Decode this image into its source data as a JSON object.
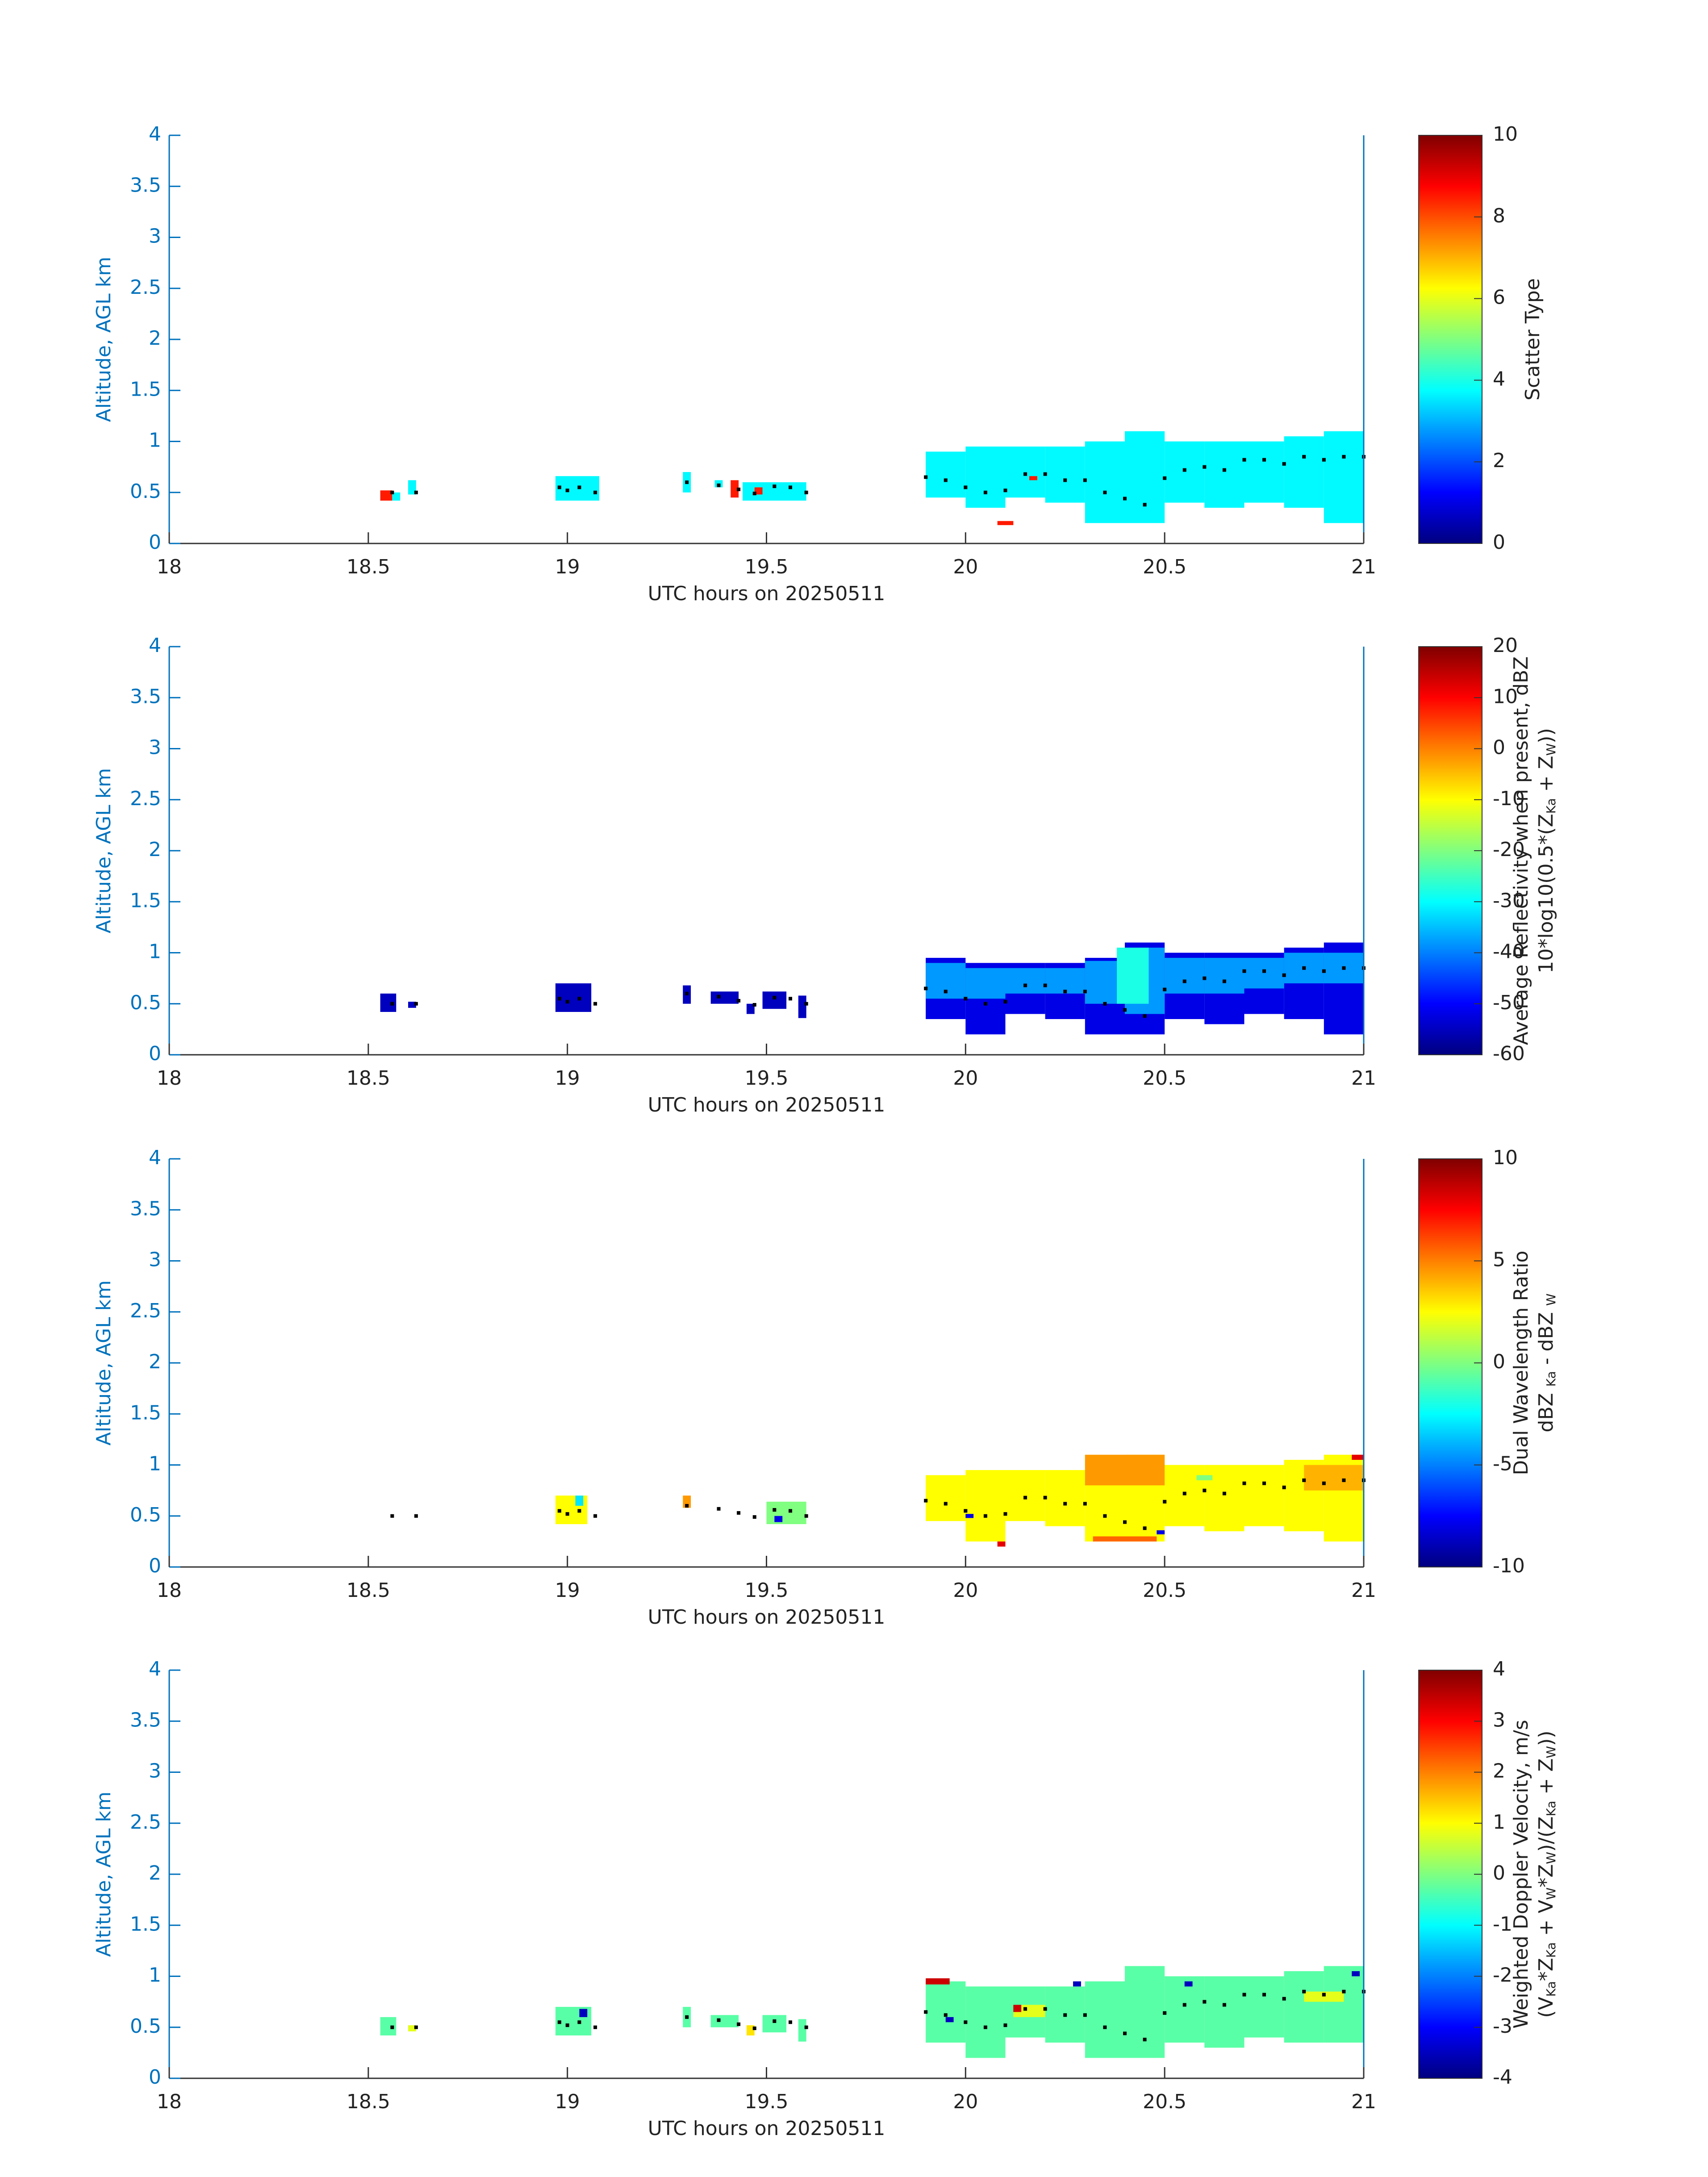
{
  "chart_data": [
    {
      "type": "heatmap",
      "xlabel": "UTC hours on 20250511",
      "ylabel": "Altitude, AGL km",
      "xlim": [
        18,
        21
      ],
      "xticks": [
        18,
        18.5,
        19,
        19.5,
        20,
        20.5,
        21
      ],
      "ylim": [
        0,
        4
      ],
      "yticks": [
        0,
        0.5,
        1,
        1.5,
        2,
        2.5,
        3,
        3.5,
        4
      ],
      "colormap": "jet",
      "clim": [
        0,
        10
      ],
      "cticks": [
        0,
        2,
        4,
        6,
        8,
        10
      ],
      "colorbar_label": [
        [
          "Scatter Type"
        ]
      ],
      "cells": [
        [
          18.53,
          18.56,
          0.42,
          0.52,
          8.5
        ],
        [
          18.56,
          18.58,
          0.42,
          0.5,
          3.7
        ],
        [
          18.6,
          18.62,
          0.48,
          0.62,
          3.7
        ],
        [
          18.97,
          19.08,
          0.42,
          0.66,
          3.7
        ],
        [
          19.29,
          19.31,
          0.5,
          0.7,
          3.7
        ],
        [
          19.37,
          19.39,
          0.55,
          0.62,
          3.7
        ],
        [
          19.41,
          19.43,
          0.45,
          0.62,
          8.5
        ],
        [
          19.44,
          19.6,
          0.42,
          0.6,
          3.7
        ],
        [
          19.47,
          19.49,
          0.48,
          0.55,
          8.5
        ],
        [
          19.9,
          20.0,
          0.45,
          0.9,
          3.7
        ],
        [
          20.0,
          20.1,
          0.35,
          0.95,
          3.7
        ],
        [
          20.1,
          20.2,
          0.45,
          0.95,
          3.7
        ],
        [
          20.2,
          20.3,
          0.4,
          0.95,
          3.7
        ],
        [
          20.3,
          20.4,
          0.2,
          1.0,
          3.7
        ],
        [
          20.4,
          20.5,
          0.2,
          1.1,
          3.7
        ],
        [
          20.5,
          20.6,
          0.4,
          1.0,
          3.7
        ],
        [
          20.6,
          20.7,
          0.35,
          1.0,
          3.7
        ],
        [
          20.7,
          20.8,
          0.4,
          1.0,
          3.7
        ],
        [
          20.8,
          20.9,
          0.35,
          1.05,
          3.7
        ],
        [
          20.9,
          21.0,
          0.2,
          1.1,
          3.7
        ],
        [
          20.08,
          20.12,
          0.18,
          0.22,
          8.5
        ],
        [
          20.16,
          20.18,
          0.62,
          0.66,
          8.5
        ]
      ],
      "points": {
        "x": [
          18.56,
          18.62,
          18.98,
          19.0,
          19.03,
          19.07,
          19.3,
          19.38,
          19.43,
          19.47,
          19.52,
          19.56,
          19.6,
          19.9,
          19.95,
          20.0,
          20.05,
          20.1,
          20.15,
          20.2,
          20.25,
          20.3,
          20.35,
          20.4,
          20.45,
          20.5,
          20.55,
          20.6,
          20.65,
          20.7,
          20.75,
          20.8,
          20.85,
          20.9,
          20.95,
          21.0
        ],
        "y": [
          0.5,
          0.5,
          0.55,
          0.52,
          0.55,
          0.5,
          0.6,
          0.57,
          0.53,
          0.49,
          0.56,
          0.55,
          0.5,
          0.65,
          0.62,
          0.55,
          0.5,
          0.52,
          0.68,
          0.68,
          0.62,
          0.62,
          0.5,
          0.44,
          0.38,
          0.64,
          0.72,
          0.75,
          0.72,
          0.82,
          0.82,
          0.78,
          0.85,
          0.82,
          0.85,
          0.85
        ]
      }
    },
    {
      "type": "heatmap",
      "xlabel": "UTC hours on 20250511",
      "ylabel": "Altitude, AGL km",
      "xlim": [
        18,
        21
      ],
      "xticks": [
        18,
        18.5,
        19,
        19.5,
        20,
        20.5,
        21
      ],
      "ylim": [
        0,
        4
      ],
      "yticks": [
        0,
        0.5,
        1,
        1.5,
        2,
        2.5,
        3,
        3.5,
        4
      ],
      "colormap": "jet",
      "clim": [
        -60,
        20
      ],
      "cticks": [
        -60,
        -50,
        -40,
        -30,
        -20,
        -10,
        0,
        10,
        20
      ],
      "colorbar_label": [
        [
          "Average Reflectivity when present, dBZ"
        ],
        [
          "10*log10(0.5*(Z",
          "Ka",
          " + Z",
          "W",
          "))"
        ]
      ],
      "cells": [
        [
          18.53,
          18.57,
          0.42,
          0.6,
          -55
        ],
        [
          18.6,
          18.62,
          0.46,
          0.52,
          -55
        ],
        [
          18.97,
          19.06,
          0.42,
          0.7,
          -55
        ],
        [
          19.29,
          19.31,
          0.5,
          0.68,
          -55
        ],
        [
          19.36,
          19.43,
          0.5,
          0.62,
          -55
        ],
        [
          19.45,
          19.47,
          0.4,
          0.5,
          -55
        ],
        [
          19.49,
          19.55,
          0.45,
          0.62,
          -55
        ],
        [
          19.58,
          19.6,
          0.36,
          0.58,
          -55
        ],
        [
          19.9,
          20.0,
          0.35,
          0.95,
          -52
        ],
        [
          20.0,
          20.1,
          0.2,
          0.9,
          -52
        ],
        [
          20.1,
          20.2,
          0.4,
          0.9,
          -52
        ],
        [
          20.2,
          20.3,
          0.35,
          0.9,
          -52
        ],
        [
          20.3,
          20.4,
          0.2,
          0.95,
          -52
        ],
        [
          20.4,
          20.5,
          0.2,
          1.1,
          -52
        ],
        [
          20.5,
          20.6,
          0.35,
          1.0,
          -52
        ],
        [
          20.6,
          20.7,
          0.3,
          1.0,
          -52
        ],
        [
          20.7,
          20.8,
          0.4,
          1.0,
          -52
        ],
        [
          20.8,
          20.9,
          0.35,
          1.05,
          -52
        ],
        [
          20.9,
          21.0,
          0.2,
          1.1,
          -52
        ],
        [
          19.9,
          20.0,
          0.55,
          0.9,
          -38
        ],
        [
          20.0,
          20.1,
          0.55,
          0.85,
          -38
        ],
        [
          20.1,
          20.2,
          0.6,
          0.85,
          -38
        ],
        [
          20.2,
          20.3,
          0.6,
          0.85,
          -38
        ],
        [
          20.3,
          20.4,
          0.5,
          0.92,
          -38
        ],
        [
          20.4,
          20.5,
          0.4,
          1.05,
          -38
        ],
        [
          20.5,
          20.6,
          0.6,
          0.95,
          -38
        ],
        [
          20.6,
          20.7,
          0.6,
          0.95,
          -38
        ],
        [
          20.7,
          20.8,
          0.65,
          0.95,
          -38
        ],
        [
          20.8,
          20.9,
          0.7,
          1.0,
          -38
        ],
        [
          20.9,
          21.0,
          0.7,
          1.0,
          -38
        ],
        [
          20.38,
          20.46,
          0.5,
          1.05,
          -28
        ]
      ],
      "points": {
        "x": [
          18.56,
          18.62,
          18.98,
          19.0,
          19.03,
          19.07,
          19.3,
          19.38,
          19.43,
          19.47,
          19.52,
          19.56,
          19.6,
          19.9,
          19.95,
          20.0,
          20.05,
          20.1,
          20.15,
          20.2,
          20.25,
          20.3,
          20.35,
          20.4,
          20.45,
          20.5,
          20.55,
          20.6,
          20.65,
          20.7,
          20.75,
          20.8,
          20.85,
          20.9,
          20.95,
          21.0
        ],
        "y": [
          0.5,
          0.5,
          0.55,
          0.52,
          0.55,
          0.5,
          0.6,
          0.57,
          0.53,
          0.49,
          0.56,
          0.55,
          0.5,
          0.65,
          0.62,
          0.55,
          0.5,
          0.52,
          0.68,
          0.68,
          0.62,
          0.62,
          0.5,
          0.44,
          0.38,
          0.64,
          0.72,
          0.75,
          0.72,
          0.82,
          0.82,
          0.78,
          0.85,
          0.82,
          0.85,
          0.85
        ]
      }
    },
    {
      "type": "heatmap",
      "xlabel": "UTC hours on 20250511",
      "ylabel": "Altitude, AGL km",
      "xlim": [
        18,
        21
      ],
      "xticks": [
        18,
        18.5,
        19,
        19.5,
        20,
        20.5,
        21
      ],
      "ylim": [
        0,
        4
      ],
      "yticks": [
        0,
        0.5,
        1,
        1.5,
        2,
        2.5,
        3,
        3.5,
        4
      ],
      "colormap": "jet",
      "clim": [
        -10,
        10
      ],
      "cticks": [
        -10,
        -5,
        0,
        5,
        10
      ],
      "colorbar_label": [
        [
          "Dual Wavelength Ratio"
        ],
        [
          "dBZ ",
          "Ka",
          " - dBZ ",
          "W"
        ]
      ],
      "cells": [
        [
          18.97,
          19.05,
          0.42,
          0.7,
          2.5
        ],
        [
          19.02,
          19.04,
          0.6,
          0.7,
          -3
        ],
        [
          19.29,
          19.31,
          0.58,
          0.7,
          4.5
        ],
        [
          19.5,
          19.6,
          0.42,
          0.64,
          0
        ],
        [
          19.52,
          19.54,
          0.44,
          0.5,
          -8
        ],
        [
          19.9,
          20.0,
          0.45,
          0.9,
          2.5
        ],
        [
          20.0,
          20.1,
          0.25,
          0.95,
          2.5
        ],
        [
          20.1,
          20.2,
          0.45,
          0.95,
          2.5
        ],
        [
          20.2,
          20.3,
          0.4,
          0.95,
          2.5
        ],
        [
          20.3,
          20.4,
          0.25,
          1.05,
          2.5
        ],
        [
          20.4,
          20.5,
          0.25,
          1.1,
          2.5
        ],
        [
          20.5,
          20.6,
          0.4,
          1.0,
          2.5
        ],
        [
          20.6,
          20.7,
          0.35,
          1.0,
          2.5
        ],
        [
          20.7,
          20.8,
          0.4,
          1.0,
          2.5
        ],
        [
          20.8,
          20.9,
          0.35,
          1.05,
          2.5
        ],
        [
          20.9,
          21.0,
          0.25,
          1.1,
          2.5
        ],
        [
          20.3,
          20.5,
          0.8,
          1.1,
          4.5
        ],
        [
          20.85,
          21.0,
          0.75,
          1.0,
          4
        ],
        [
          20.32,
          20.48,
          0.25,
          0.3,
          5.5
        ],
        [
          20.97,
          21.0,
          1.05,
          1.1,
          8
        ],
        [
          20.08,
          20.1,
          0.2,
          0.25,
          8
        ],
        [
          20.0,
          20.02,
          0.48,
          0.52,
          -8
        ],
        [
          20.48,
          20.5,
          0.32,
          0.36,
          -8
        ],
        [
          20.58,
          20.62,
          0.85,
          0.9,
          0
        ]
      ],
      "points": {
        "x": [
          18.56,
          18.62,
          18.98,
          19.0,
          19.03,
          19.07,
          19.3,
          19.38,
          19.43,
          19.47,
          19.52,
          19.56,
          19.6,
          19.9,
          19.95,
          20.0,
          20.05,
          20.1,
          20.15,
          20.2,
          20.25,
          20.3,
          20.35,
          20.4,
          20.45,
          20.5,
          20.55,
          20.6,
          20.65,
          20.7,
          20.75,
          20.8,
          20.85,
          20.9,
          20.95,
          21.0
        ],
        "y": [
          0.5,
          0.5,
          0.55,
          0.52,
          0.55,
          0.5,
          0.6,
          0.57,
          0.53,
          0.49,
          0.56,
          0.55,
          0.5,
          0.65,
          0.62,
          0.55,
          0.5,
          0.52,
          0.68,
          0.68,
          0.62,
          0.62,
          0.5,
          0.44,
          0.38,
          0.64,
          0.72,
          0.75,
          0.72,
          0.82,
          0.82,
          0.78,
          0.85,
          0.82,
          0.85,
          0.85
        ]
      }
    },
    {
      "type": "heatmap",
      "xlabel": "UTC hours on 20250511",
      "ylabel": "Altitude, AGL km",
      "xlim": [
        18,
        21
      ],
      "xticks": [
        18,
        18.5,
        19,
        19.5,
        20,
        20.5,
        21
      ],
      "ylim": [
        0,
        4
      ],
      "yticks": [
        0,
        0.5,
        1,
        1.5,
        2,
        2.5,
        3,
        3.5,
        4
      ],
      "colormap": "jet",
      "clim": [
        -4,
        4
      ],
      "cticks": [
        -4,
        -3,
        -2,
        -1,
        0,
        1,
        2,
        3,
        4
      ],
      "colorbar_label": [
        [
          "Weighted Doppler Velocity, m/s"
        ],
        [
          "(V",
          "Ka",
          "*Z",
          "Ka",
          " + V",
          "W",
          "*Z",
          "W",
          ")/(Z",
          "Ka",
          " + Z",
          "W",
          "))"
        ]
      ],
      "cells": [
        [
          18.53,
          18.57,
          0.42,
          0.6,
          -0.3
        ],
        [
          18.6,
          18.62,
          0.46,
          0.52,
          0.8
        ],
        [
          18.97,
          19.06,
          0.42,
          0.7,
          -0.3
        ],
        [
          19.03,
          19.05,
          0.6,
          0.68,
          -3.5
        ],
        [
          19.29,
          19.31,
          0.5,
          0.7,
          -0.3
        ],
        [
          19.36,
          19.43,
          0.5,
          0.62,
          -0.3
        ],
        [
          19.45,
          19.47,
          0.42,
          0.52,
          1.2
        ],
        [
          19.49,
          19.55,
          0.45,
          0.62,
          -0.3
        ],
        [
          19.58,
          19.6,
          0.36,
          0.58,
          -0.3
        ],
        [
          19.9,
          20.0,
          0.35,
          0.95,
          -0.3
        ],
        [
          20.0,
          20.1,
          0.2,
          0.9,
          -0.3
        ],
        [
          20.1,
          20.2,
          0.4,
          0.9,
          -0.3
        ],
        [
          20.2,
          20.3,
          0.35,
          0.9,
          -0.3
        ],
        [
          20.3,
          20.4,
          0.2,
          0.95,
          -0.3
        ],
        [
          20.4,
          20.5,
          0.2,
          1.1,
          -0.3
        ],
        [
          20.5,
          20.6,
          0.35,
          1.0,
          -0.3
        ],
        [
          20.6,
          20.7,
          0.3,
          1.0,
          -0.3
        ],
        [
          20.7,
          20.8,
          0.4,
          1.0,
          -0.3
        ],
        [
          20.8,
          20.9,
          0.35,
          1.05,
          -0.3
        ],
        [
          20.9,
          21.0,
          0.35,
          1.1,
          -0.3
        ],
        [
          20.12,
          20.2,
          0.6,
          0.72,
          0.8
        ],
        [
          20.85,
          20.95,
          0.75,
          0.85,
          0.8
        ],
        [
          19.9,
          19.96,
          0.92,
          0.98,
          3.4
        ],
        [
          20.12,
          20.14,
          0.65,
          0.72,
          3.4
        ],
        [
          20.27,
          20.29,
          0.9,
          0.95,
          -3.5
        ],
        [
          19.95,
          19.97,
          0.55,
          0.6,
          -3.5
        ],
        [
          20.55,
          20.57,
          0.9,
          0.95,
          -3.5
        ],
        [
          20.97,
          20.99,
          1.0,
          1.05,
          -3.5
        ]
      ],
      "points": {
        "x": [
          18.56,
          18.62,
          18.98,
          19.0,
          19.03,
          19.07,
          19.3,
          19.38,
          19.43,
          19.47,
          19.52,
          19.56,
          19.6,
          19.9,
          19.95,
          20.0,
          20.05,
          20.1,
          20.15,
          20.2,
          20.25,
          20.3,
          20.35,
          20.4,
          20.45,
          20.5,
          20.55,
          20.6,
          20.65,
          20.7,
          20.75,
          20.8,
          20.85,
          20.9,
          20.95,
          21.0
        ],
        "y": [
          0.5,
          0.5,
          0.55,
          0.52,
          0.55,
          0.5,
          0.6,
          0.57,
          0.53,
          0.49,
          0.56,
          0.55,
          0.5,
          0.65,
          0.62,
          0.55,
          0.5,
          0.52,
          0.68,
          0.68,
          0.62,
          0.62,
          0.5,
          0.44,
          0.38,
          0.64,
          0.72,
          0.75,
          0.72,
          0.82,
          0.82,
          0.78,
          0.85,
          0.82,
          0.85,
          0.85
        ]
      }
    }
  ]
}
